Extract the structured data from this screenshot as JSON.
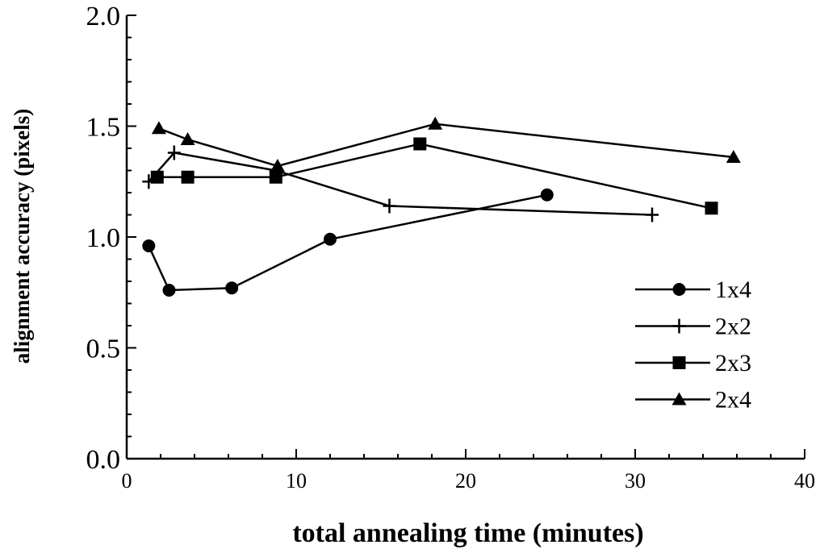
{
  "chart_data": {
    "type": "line",
    "title": "",
    "xlabel": "total annealing time (minutes)",
    "ylabel": "alignment accuracy (pixels)",
    "xlim": [
      0,
      40
    ],
    "ylim": [
      0.0,
      2.0
    ],
    "xticks": [
      0,
      10,
      20,
      30,
      40
    ],
    "xtick_labels": [
      "0",
      "10",
      "20",
      "30",
      "40"
    ],
    "yticks": [
      0.0,
      0.5,
      1.0,
      1.5,
      2.0
    ],
    "ytick_labels": [
      "0.0",
      "0.5",
      "1.0",
      "1.5",
      "2.0"
    ],
    "grid": false,
    "legend_position": "bottom-right",
    "series": [
      {
        "name": "1x4",
        "marker": "circle",
        "x": [
          1.3,
          2.5,
          6.2,
          12.0,
          24.8
        ],
        "y": [
          0.96,
          0.76,
          0.77,
          0.99,
          1.19
        ]
      },
      {
        "name": "2x2",
        "marker": "plus",
        "x": [
          1.3,
          2.8,
          8.8,
          15.5,
          31.0
        ],
        "y": [
          1.25,
          1.38,
          1.3,
          1.14,
          1.1
        ]
      },
      {
        "name": "2x3",
        "marker": "square",
        "x": [
          1.8,
          3.6,
          8.8,
          17.3,
          34.5
        ],
        "y": [
          1.27,
          1.27,
          1.27,
          1.42,
          1.13
        ]
      },
      {
        "name": "2x4",
        "marker": "triangle",
        "x": [
          1.9,
          3.6,
          8.9,
          18.2,
          35.8
        ],
        "y": [
          1.49,
          1.44,
          1.32,
          1.51,
          1.36
        ]
      }
    ]
  }
}
